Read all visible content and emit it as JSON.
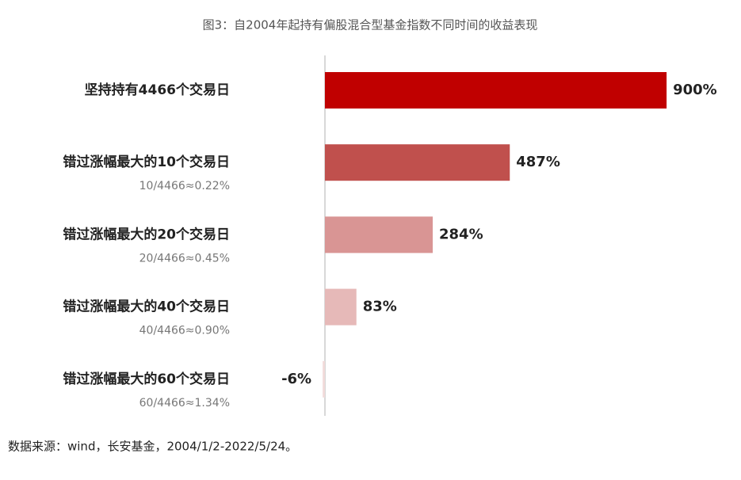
{
  "chart_data": {
    "type": "bar",
    "orientation": "horizontal",
    "title": "图3：自2004年起持有偏股混合型基金指数不同时间的收益表现",
    "categories": [
      "坚持持有4466个交易日",
      "错过涨幅最大的10个交易日",
      "错过涨幅最大的20个交易日",
      "错过涨幅最大的40个交易日",
      "错过涨幅最大的60个交易日"
    ],
    "category_notes": [
      null,
      "10/4466≈0.22%",
      "20/4466≈0.45%",
      "40/4466≈0.90%",
      "60/4466≈1.34%"
    ],
    "values": [
      900,
      487,
      284,
      83,
      -6
    ],
    "value_labels": [
      "900%",
      "487%",
      "284%",
      "83%",
      "-6%"
    ],
    "colors": [
      "#c00000",
      "#c0504d",
      "#d99594",
      "#e6b9b8",
      "#f2dcdb"
    ],
    "xlim": [
      -30,
      1000
    ],
    "source": "数据来源：wind，长安基金，2004/1/2-2022/5/24。"
  }
}
